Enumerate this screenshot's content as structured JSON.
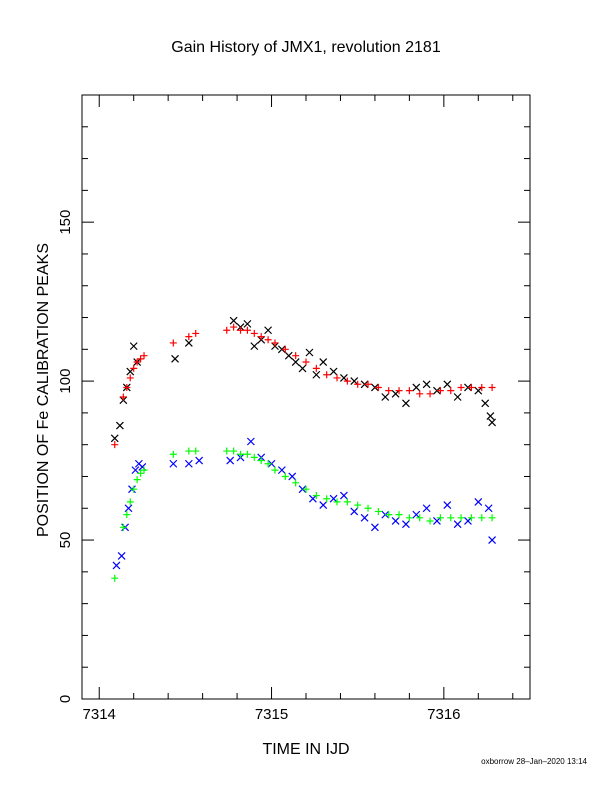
{
  "chart_data": {
    "type": "scatter",
    "title": "Gain History of JMX1, revolution 2181",
    "xlabel": "TIME IN IJD",
    "ylabel": "POSITION OF Fe CALIBRATION PEAKS",
    "xlim": [
      7313.9,
      7316.5
    ],
    "ylim": [
      0,
      190
    ],
    "x_ticks": [
      7314,
      7315,
      7316
    ],
    "x_tick_labels": [
      "7314",
      "7315",
      "7316"
    ],
    "y_ticks": [
      0,
      50,
      100,
      150
    ],
    "y_tick_labels": [
      "0",
      "50",
      "100",
      "150"
    ],
    "grid": false,
    "legend": "none",
    "footer": "oxborrow 28–Jan–2020 13:14",
    "series": [
      {
        "marker": "x",
        "color": "#000000",
        "x": [
          7314.09,
          7314.12,
          7314.14,
          7314.16,
          7314.18,
          7314.2,
          7314.22,
          7314.44,
          7314.52,
          7314.78,
          7314.82,
          7314.86,
          7314.9,
          7314.94,
          7314.98,
          7315.02,
          7315.06,
          7315.1,
          7315.14,
          7315.18,
          7315.22,
          7315.26,
          7315.3,
          7315.36,
          7315.42,
          7315.48,
          7315.54,
          7315.6,
          7315.66,
          7315.72,
          7315.78,
          7315.84,
          7315.9,
          7315.96,
          7316.02,
          7316.08,
          7316.14,
          7316.2,
          7316.24,
          7316.27,
          7316.28
        ],
        "y": [
          82,
          86,
          94,
          98,
          103,
          111,
          106,
          107,
          112,
          119,
          117,
          118,
          111,
          113,
          116,
          111,
          110,
          108,
          106,
          104,
          109,
          102,
          106,
          103,
          101,
          100,
          99,
          98,
          95,
          96,
          93,
          98,
          99,
          97,
          99,
          95,
          98,
          97,
          93,
          89,
          87
        ]
      },
      {
        "marker": "+",
        "color": "#ff0000",
        "x": [
          7314.09,
          7314.14,
          7314.16,
          7314.18,
          7314.2,
          7314.22,
          7314.24,
          7314.26,
          7314.43,
          7314.52,
          7314.56,
          7314.74,
          7314.78,
          7314.82,
          7314.86,
          7314.9,
          7314.94,
          7314.98,
          7315.02,
          7315.08,
          7315.14,
          7315.2,
          7315.26,
          7315.32,
          7315.38,
          7315.44,
          7315.5,
          7315.56,
          7315.62,
          7315.68,
          7315.74,
          7315.8,
          7315.86,
          7315.92,
          7315.98,
          7316.04,
          7316.1,
          7316.16,
          7316.22,
          7316.28
        ],
        "y": [
          80,
          95,
          98,
          101,
          104,
          106,
          107,
          108,
          112,
          114,
          115,
          116,
          117,
          116,
          116,
          115,
          114,
          113,
          112,
          110,
          108,
          106,
          104,
          102,
          101,
          100,
          99,
          99,
          98,
          97,
          97,
          97,
          96,
          96,
          97,
          97,
          98,
          98,
          98,
          98
        ]
      },
      {
        "marker": "x",
        "color": "#0000ff",
        "x": [
          7314.1,
          7314.13,
          7314.15,
          7314.17,
          7314.19,
          7314.21,
          7314.23,
          7314.25,
          7314.43,
          7314.52,
          7314.58,
          7314.76,
          7314.82,
          7314.88,
          7314.94,
          7315.0,
          7315.06,
          7315.12,
          7315.18,
          7315.24,
          7315.3,
          7315.36,
          7315.42,
          7315.48,
          7315.54,
          7315.6,
          7315.66,
          7315.72,
          7315.78,
          7315.84,
          7315.9,
          7315.96,
          7316.02,
          7316.08,
          7316.14,
          7316.2,
          7316.26,
          7316.28
        ],
        "y": [
          42,
          45,
          54,
          60,
          66,
          72,
          74,
          73,
          74,
          74,
          75,
          75,
          76,
          81,
          76,
          74,
          72,
          70,
          66,
          63,
          61,
          63,
          64,
          59,
          57,
          54,
          58,
          56,
          55,
          58,
          60,
          56,
          61,
          55,
          56,
          62,
          60,
          50
        ]
      },
      {
        "marker": "+",
        "color": "#00ff00",
        "x": [
          7314.09,
          7314.14,
          7314.16,
          7314.18,
          7314.2,
          7314.22,
          7314.24,
          7314.26,
          7314.43,
          7314.52,
          7314.56,
          7314.74,
          7314.78,
          7314.82,
          7314.86,
          7314.9,
          7314.94,
          7314.98,
          7315.02,
          7315.08,
          7315.14,
          7315.2,
          7315.26,
          7315.32,
          7315.38,
          7315.44,
          7315.5,
          7315.56,
          7315.62,
          7315.68,
          7315.74,
          7315.8,
          7315.86,
          7315.92,
          7315.98,
          7316.04,
          7316.1,
          7316.16,
          7316.22,
          7316.28
        ],
        "y": [
          38,
          54,
          58,
          62,
          66,
          69,
          71,
          72,
          77,
          78,
          78,
          78,
          78,
          77,
          77,
          76,
          75,
          74,
          72,
          70,
          68,
          66,
          64,
          63,
          62,
          62,
          61,
          60,
          59,
          58,
          58,
          57,
          57,
          56,
          57,
          57,
          57,
          57,
          57,
          57
        ]
      }
    ]
  }
}
